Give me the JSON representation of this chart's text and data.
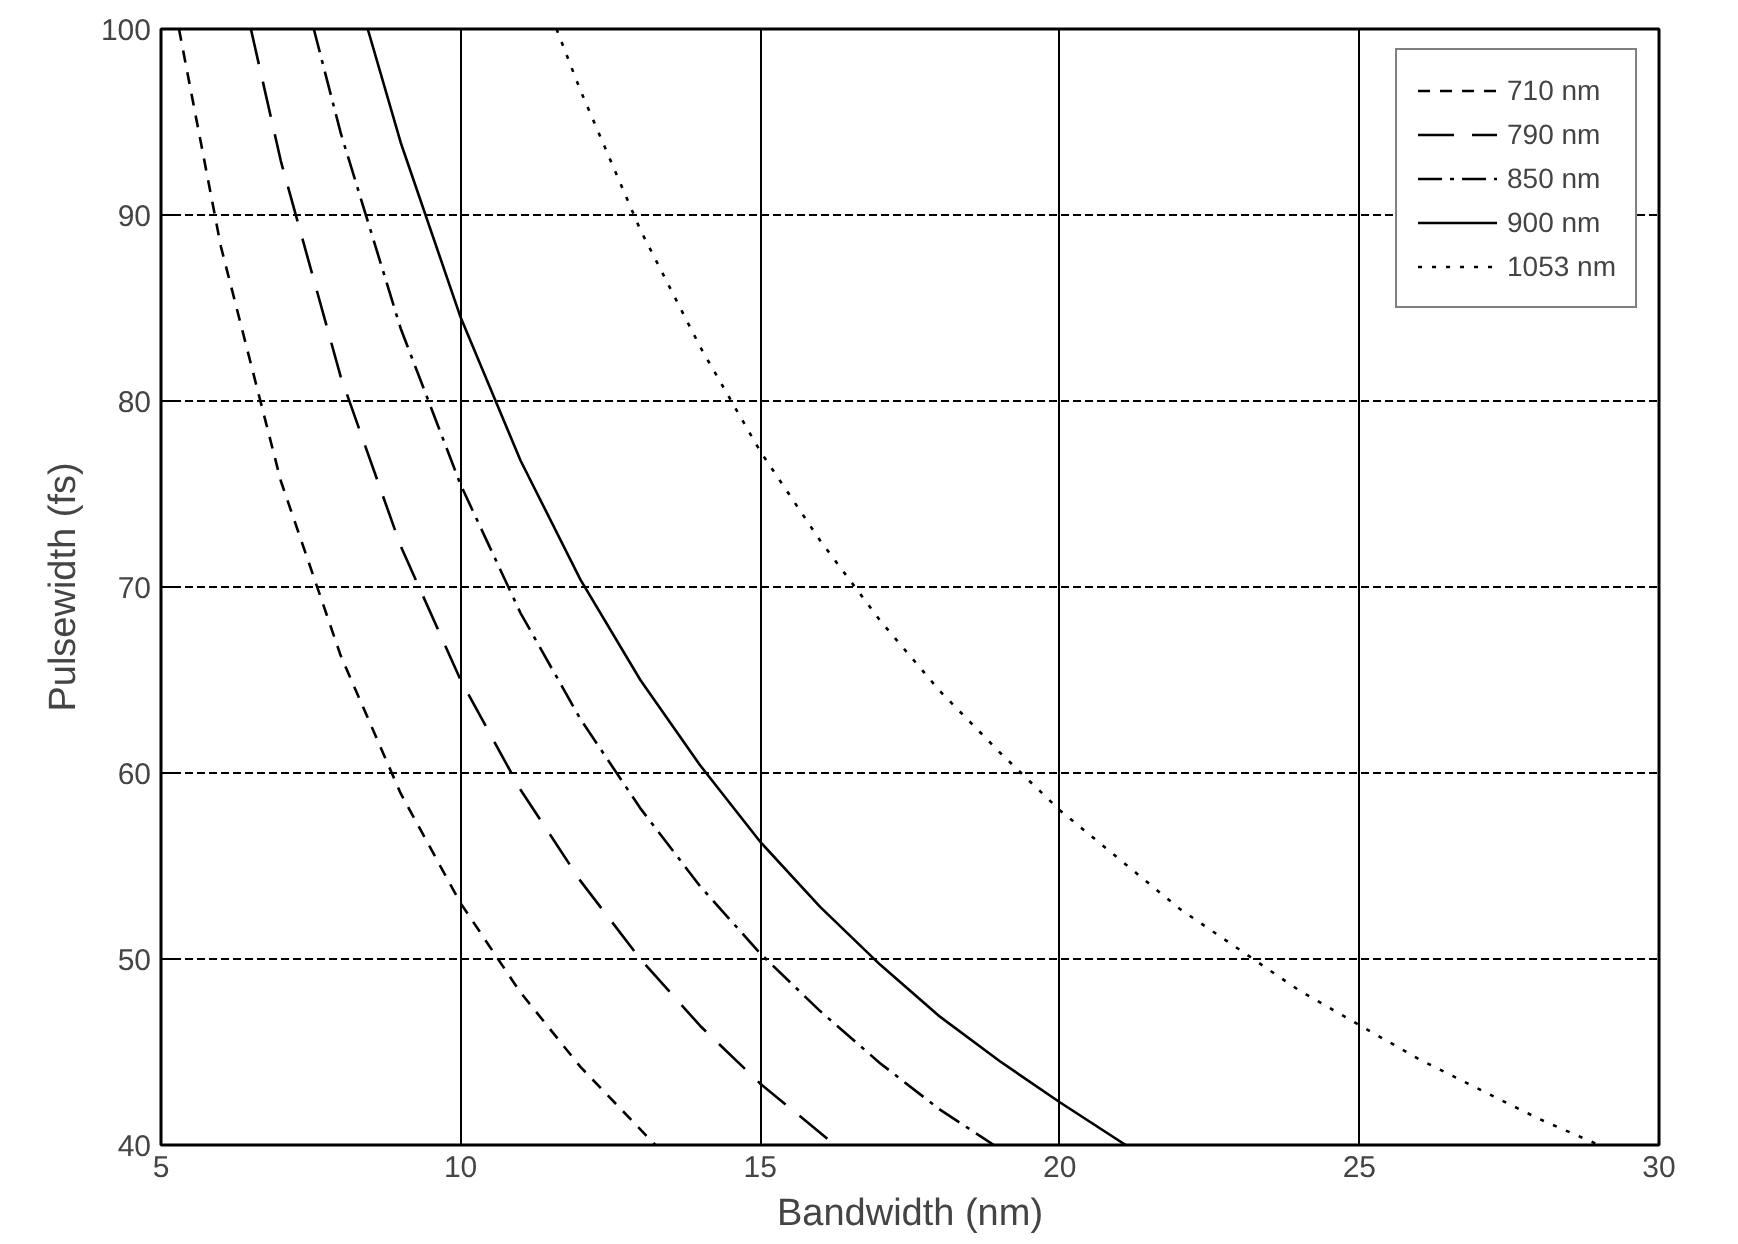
{
  "chart_data": {
    "type": "line",
    "xlabel": "Bandwidth (nm)",
    "ylabel": "Pulsewidth (fs)",
    "xlim": [
      5,
      30
    ],
    "ylim": [
      40,
      100
    ],
    "xticks": [
      5,
      10,
      15,
      20,
      25,
      30
    ],
    "yticks": [
      40,
      50,
      60,
      70,
      80,
      90,
      100
    ],
    "grid": true,
    "legend": "top right",
    "marker": "none",
    "series": [
      {
        "name": "710 nm",
        "color": "#000000",
        "line_style": "dashed",
        "x": [
          5.3,
          6,
          7,
          8,
          9,
          10,
          11,
          12,
          13.25
        ],
        "values": [
          100,
          88.3,
          75.7,
          66.3,
          58.9,
          53,
          48.2,
          44.2,
          40
        ]
      },
      {
        "name": "790 nm",
        "color": "#000000",
        "line_style": "longdash",
        "x": [
          6.5,
          7,
          8,
          9,
          10,
          11,
          12,
          13,
          14,
          15,
          16.25
        ],
        "values": [
          100,
          92.9,
          81.3,
          72.2,
          65,
          59.1,
          54.2,
          50,
          46.4,
          43.3,
          40
        ]
      },
      {
        "name": "850 nm",
        "color": "#000000",
        "line_style": "dashdot",
        "x": [
          7.55,
          8,
          9,
          10,
          11,
          12,
          13,
          14,
          15,
          16,
          17,
          18,
          18.9
        ],
        "values": [
          100,
          94.4,
          83.9,
          75.5,
          68.6,
          62.9,
          58.1,
          53.9,
          50.3,
          47.2,
          44.4,
          41.9,
          40
        ]
      },
      {
        "name": "900 nm",
        "color": "#000000",
        "line_style": "solid",
        "x": [
          8.45,
          9,
          10,
          11,
          12,
          13,
          14,
          15,
          16,
          17,
          18,
          19,
          20,
          21.1
        ],
        "values": [
          100,
          93.9,
          84.5,
          76.8,
          70.4,
          65,
          60.4,
          56.3,
          52.8,
          49.7,
          46.9,
          44.5,
          42.3,
          40
        ]
      },
      {
        "name": "1053 nm",
        "color": "#000000",
        "line_style": "dotted",
        "x": [
          11.6,
          12,
          13,
          14,
          15,
          16,
          17,
          18,
          19,
          20,
          22,
          24,
          26,
          28,
          29
        ],
        "values": [
          100,
          96.7,
          89.2,
          82.9,
          77.3,
          72.5,
          68.2,
          64.4,
          61.1,
          58,
          52.7,
          48.3,
          44.6,
          41.4,
          40
        ]
      }
    ]
  }
}
